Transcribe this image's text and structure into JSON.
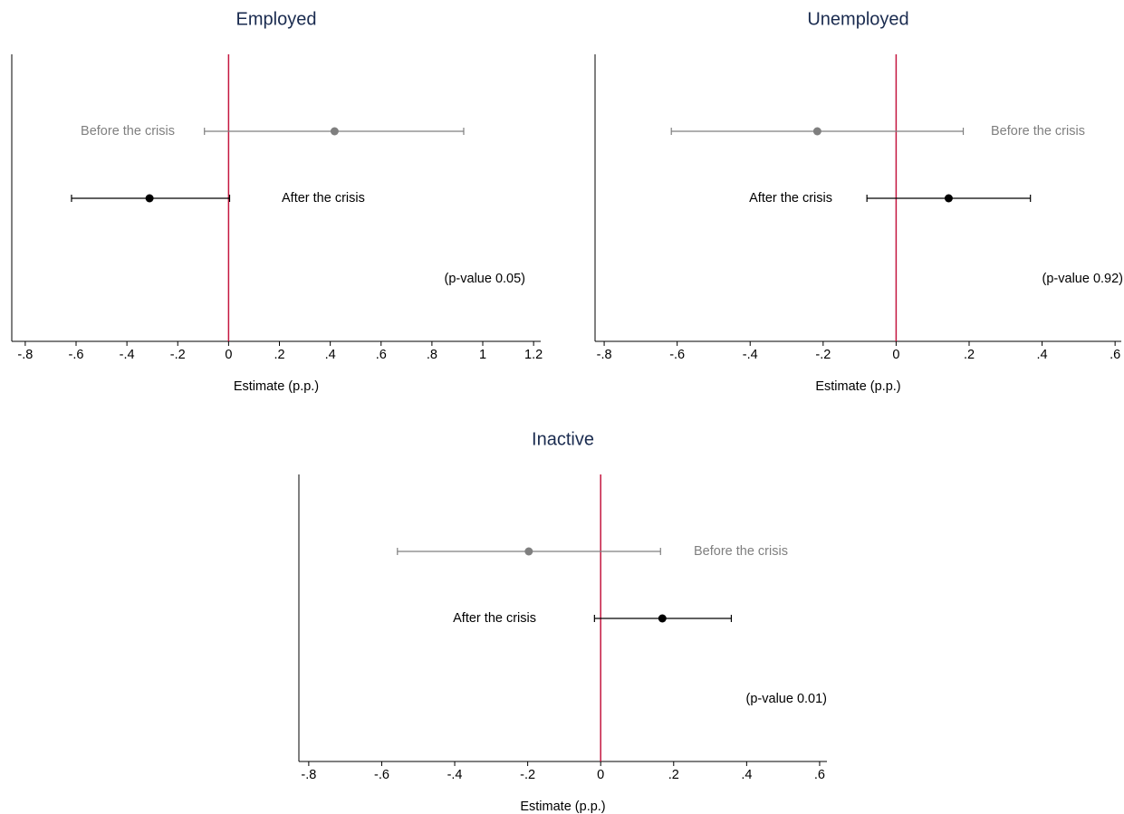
{
  "chart_data": [
    {
      "type": "dot",
      "title": "Employed",
      "x_label": "Estimate (p.p.)",
      "annotation": "(p-value 0.05)",
      "series": [
        {
          "name": "Before the crisis",
          "color": "#7f7f7f",
          "values": [
            0.417
          ],
          "lower": [
            -0.095
          ],
          "upper": [
            0.925
          ]
        },
        {
          "name": "After the crisis",
          "color": "#000000",
          "values": [
            -0.311
          ],
          "lower": [
            -0.618
          ],
          "upper": [
            0.004
          ]
        }
      ],
      "xline": 0,
      "xline_color": "#c4163f",
      "xlim": [
        -0.853,
        1.228
      ],
      "xticks": [
        {
          "value": -0.8,
          "label": "-.8"
        },
        {
          "value": -0.6,
          "label": "-.6"
        },
        {
          "value": -0.4,
          "label": "-.4"
        },
        {
          "value": -0.2,
          "label": "-.2"
        },
        0,
        {
          "value": 0.2,
          "label": ".2"
        },
        {
          "value": 0.4,
          "label": ".4"
        },
        {
          "value": 0.6,
          "label": ".6"
        },
        {
          "value": 0.8,
          "label": ".8"
        },
        1,
        1.2
      ]
    },
    {
      "type": "dot",
      "title": "Unemployed",
      "x_label": "Estimate (p.p.)",
      "annotation": "(p-value 0.92)",
      "series": [
        {
          "name": "Before the crisis",
          "color": "#7f7f7f",
          "values": [
            -0.216
          ],
          "lower": [
            -0.616
          ],
          "upper": [
            0.184
          ]
        },
        {
          "name": "After the crisis",
          "color": "#000000",
          "values": [
            0.144
          ],
          "lower": [
            -0.08
          ],
          "upper": [
            0.368
          ]
        }
      ],
      "xline": 0,
      "xline_color": "#c4163f",
      "xlim": [
        -0.825,
        0.617
      ],
      "xticks": [
        {
          "value": -0.8,
          "label": "-.8"
        },
        {
          "value": -0.6,
          "label": "-.6"
        },
        {
          "value": -0.4,
          "label": "-.4"
        },
        {
          "value": -0.2,
          "label": "-.2"
        },
        0,
        {
          "value": 0.2,
          "label": ".2"
        },
        {
          "value": 0.4,
          "label": ".4"
        },
        {
          "value": 0.6,
          "label": ".6"
        }
      ]
    },
    {
      "type": "dot",
      "title": "Inactive",
      "x_label": "Estimate (p.p.)",
      "annotation": "(p-value 0.01)",
      "series": [
        {
          "name": "Before the crisis",
          "color": "#7f7f7f",
          "values": [
            -0.197
          ],
          "lower": [
            -0.557
          ],
          "upper": [
            0.164
          ]
        },
        {
          "name": "After the crisis",
          "color": "#000000",
          "values": [
            0.169
          ],
          "lower": [
            -0.017
          ],
          "upper": [
            0.358
          ]
        }
      ],
      "xline": 0,
      "xline_color": "#c4163f",
      "xlim": [
        -0.827,
        0.62
      ],
      "xticks": [
        {
          "value": -0.8,
          "label": "-.8"
        },
        {
          "value": -0.6,
          "label": "-.6"
        },
        {
          "value": -0.4,
          "label": "-.4"
        },
        {
          "value": -0.2,
          "label": "-.2"
        },
        0,
        {
          "value": 0.2,
          "label": ".2"
        },
        {
          "value": 0.4,
          "label": ".4"
        },
        {
          "value": 0.6,
          "label": ".6"
        }
      ]
    }
  ]
}
